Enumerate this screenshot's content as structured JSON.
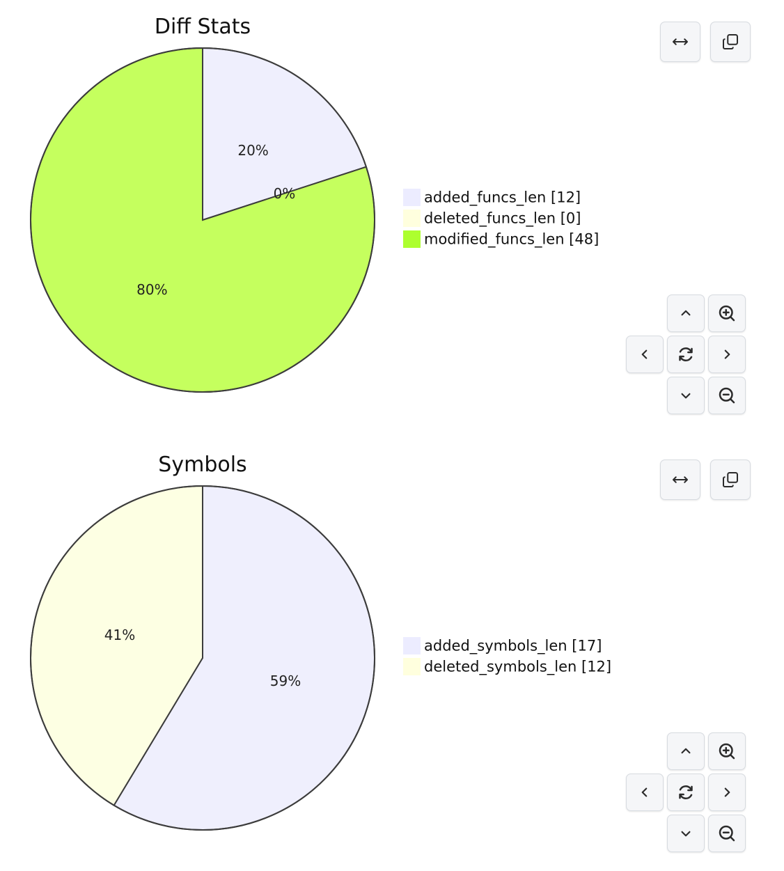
{
  "chart_data": [
    {
      "type": "pie",
      "title": "Diff Stats",
      "slices": [
        {
          "name": "added_funcs_len",
          "value": 12,
          "percent_label": "20%",
          "legend_label": "added_funcs_len [12]",
          "color": "#efeffd"
        },
        {
          "name": "deleted_funcs_len",
          "value": 0,
          "percent_label": "0%",
          "legend_label": "deleted_funcs_len [0]",
          "color": "#fdffe3"
        },
        {
          "name": "modified_funcs_len",
          "value": 48,
          "percent_label": "80%",
          "legend_label": "modified_funcs_len [48]",
          "color": "#c5ff5e"
        }
      ],
      "legend_swatch_colors": [
        "#ececff",
        "#ffffde",
        "#adff2f"
      ],
      "legend_position": "right",
      "start_angle": "12 o'clock, clockwise"
    },
    {
      "type": "pie",
      "title": "Symbols",
      "slices": [
        {
          "name": "added_symbols_len",
          "value": 17,
          "percent_label": "59%",
          "legend_label": "added_symbols_len [17]",
          "color": "#efeffd"
        },
        {
          "name": "deleted_symbols_len",
          "value": 12,
          "percent_label": "41%",
          "legend_label": "deleted_symbols_len [12]",
          "color": "#fdffe3"
        }
      ],
      "legend_swatch_colors": [
        "#ececff",
        "#ffffde"
      ],
      "legend_position": "right",
      "start_angle": "12 o'clock, clockwise"
    }
  ],
  "controls": {
    "top": [
      "fit-width-icon",
      "copy-icon"
    ],
    "navigation": [
      "chevron-up-icon",
      "zoom-in-icon",
      "chevron-left-icon",
      "reset-icon",
      "chevron-right-icon",
      "chevron-down-icon",
      "zoom-out-icon"
    ]
  },
  "colors": {
    "outline": "#3c3c3c",
    "control_bg": "#f5f6f8",
    "control_border": "#d7dbe0",
    "icon": "#2b2b2b"
  }
}
